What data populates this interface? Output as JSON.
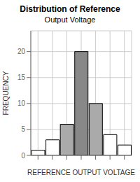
{
  "chart_data": {
    "type": "bar",
    "title": "Distribution of Reference",
    "subtitle": "Output Voltage",
    "x_label": "REFERENCE OUTPUT VOLTAGE",
    "y_label": "FREQUENCY",
    "categories": [
      null,
      null,
      null,
      null,
      null,
      null,
      null
    ],
    "values": [
      1,
      3,
      6,
      20,
      10,
      4,
      2
    ],
    "colors": [
      "white",
      "white",
      "#aaaaaa",
      "#888888",
      "#aaaaaa",
      "white",
      "white"
    ],
    "ylim": [
      0,
      24
    ],
    "yticks": [
      0,
      5,
      10,
      15,
      20
    ],
    "grid": true
  }
}
